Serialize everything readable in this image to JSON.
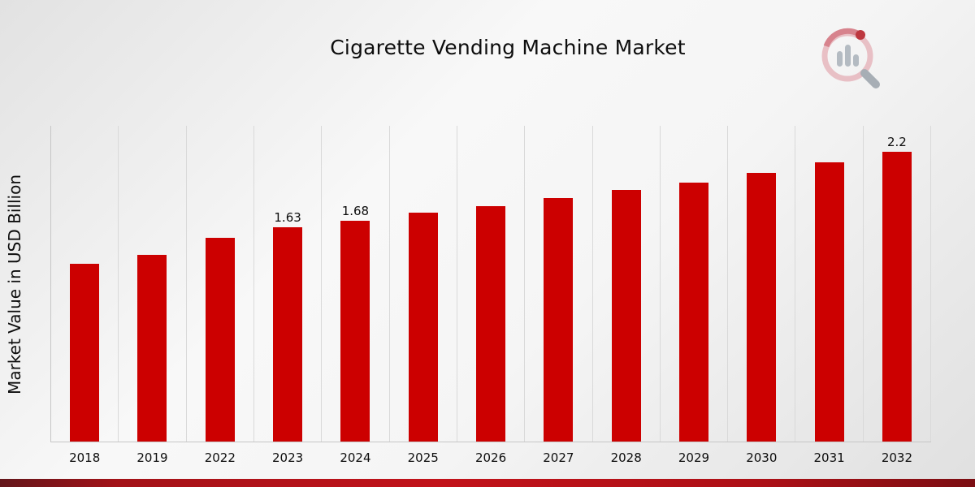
{
  "chart_data": {
    "type": "bar",
    "title": "Cigarette Vending Machine Market",
    "ylabel": "Market Value in USD Billion",
    "xlabel": "",
    "categories": [
      "2018",
      "2019",
      "2022",
      "2023",
      "2024",
      "2025",
      "2026",
      "2027",
      "2028",
      "2029",
      "2030",
      "2031",
      "2032"
    ],
    "values": [
      1.35,
      1.42,
      1.55,
      1.63,
      1.68,
      1.74,
      1.79,
      1.85,
      1.91,
      1.97,
      2.04,
      2.12,
      2.2
    ],
    "data_labels": [
      "",
      "",
      "",
      "1.63",
      "1.68",
      "",
      "",
      "",
      "",
      "",
      "",
      "",
      "2.2"
    ],
    "ylim": [
      0,
      2.4
    ],
    "grid": "vertical-gridlines",
    "legend": "none",
    "bar_color": "#CC0000"
  },
  "branding": {
    "logo_icon": "magnifier-bar-chart-icon"
  },
  "footer": {
    "accent_bar_color": "#B01116"
  }
}
